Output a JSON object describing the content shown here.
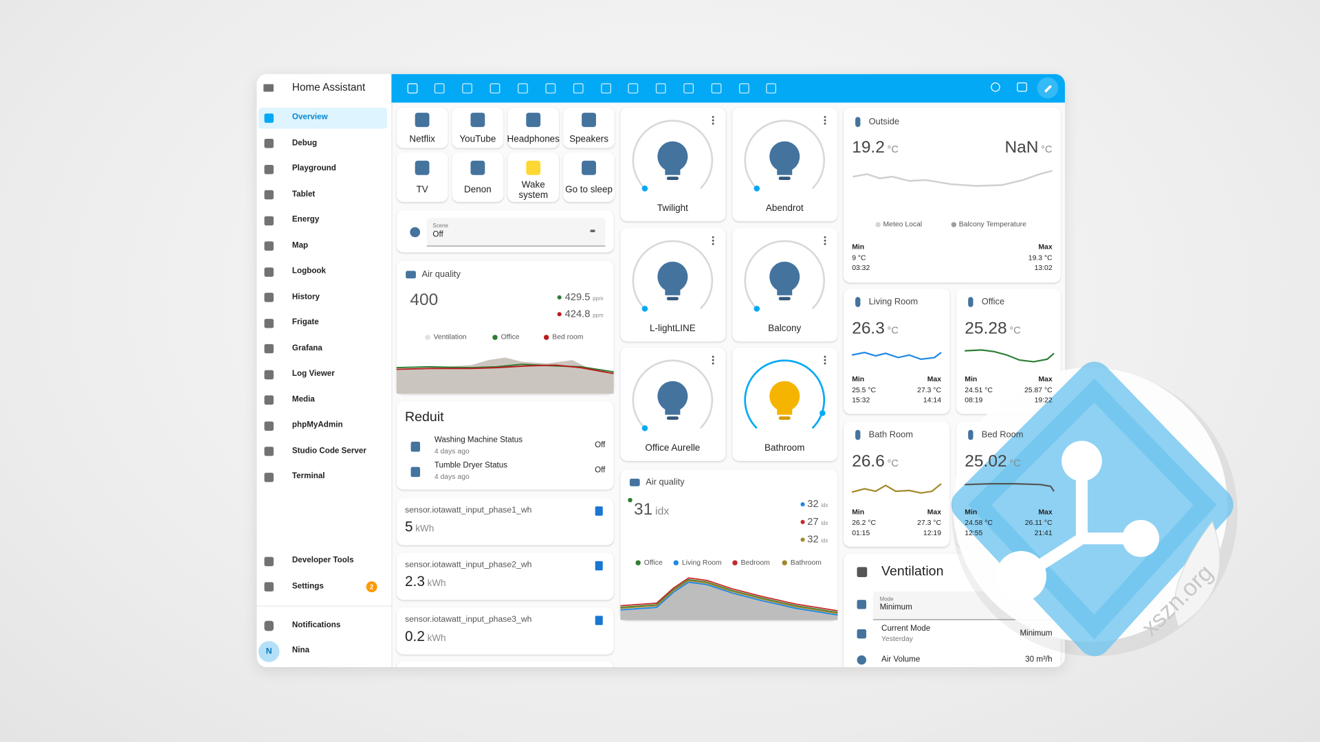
{
  "app": {
    "title": "Home Assistant"
  },
  "sidebar": {
    "items": [
      "Overview",
      "Debug",
      "Playground",
      "Tablet",
      "Energy",
      "Map",
      "Logbook",
      "History",
      "Frigate",
      "Grafana",
      "Log Viewer",
      "Media",
      "phpMyAdmin",
      "Studio Code Server",
      "Terminal"
    ],
    "bottom": [
      "Developer Tools",
      "Settings"
    ],
    "settings_badge": "2",
    "notifications": "Notifications",
    "user": {
      "initial": "N",
      "name": "Nina"
    }
  },
  "buttons": [
    "Netflix",
    "YouTube",
    "Headphones",
    "Speakers",
    "TV",
    "Denon",
    "Wake system",
    "Go to sleep"
  ],
  "scene": {
    "label": "Scene",
    "value": "Off"
  },
  "air_quality_1": {
    "title": "Air quality",
    "value": "400",
    "readings": [
      {
        "value": "429.5",
        "unit": "ppm"
      },
      {
        "value": "424.8",
        "unit": "ppm"
      }
    ],
    "legend": [
      "Ventilation",
      "Office",
      "Bed room"
    ]
  },
  "reduit": {
    "title": "Reduit",
    "rows": [
      {
        "name": "Washing Machine Status",
        "time": "4 days ago",
        "state": "Off"
      },
      {
        "name": "Tumble Dryer Status",
        "time": "4 days ago",
        "state": "Off"
      }
    ]
  },
  "energy": [
    {
      "entity": "sensor.iotawatt_input_phase1_wh",
      "value": "5",
      "unit": "kWh"
    },
    {
      "entity": "sensor.iotawatt_input_phase2_wh",
      "value": "2.3",
      "unit": "kWh"
    },
    {
      "entity": "sensor.iotawatt_input_phase3_wh",
      "value": "0.2",
      "unit": "kWh"
    }
  ],
  "lights": [
    "Twilight",
    "Abendrot",
    "L-lightLINE",
    "Balcony",
    "Office Aurelle",
    "Bathroom"
  ],
  "air_quality_2": {
    "title": "Air quality",
    "value": "31",
    "unit": "idx",
    "readings": [
      {
        "value": "32",
        "unit": "idx"
      },
      {
        "value": "27",
        "unit": "idx"
      },
      {
        "value": "32",
        "unit": "idx"
      }
    ],
    "legend": [
      "Office",
      "Living Room",
      "Bedroom",
      "Bathroom"
    ]
  },
  "outside": {
    "title": "Outside",
    "values": [
      {
        "value": "19.2",
        "unit": "°C"
      },
      {
        "value": "NaN",
        "unit": "°C"
      }
    ],
    "legend": [
      "Meteo Local",
      "Balcony Temperature"
    ],
    "min": {
      "label": "Min",
      "value": "9 °C",
      "time": "03:32"
    },
    "max": {
      "label": "Max",
      "value": "19.3 °C",
      "time": "13:02"
    }
  },
  "rooms": [
    {
      "name": "Living Room",
      "value": "26.3",
      "unit": "°C",
      "min": {
        "label": "Min",
        "value": "25.5 °C",
        "time": "15:32"
      },
      "max": {
        "label": "Max",
        "value": "27.3 °C",
        "time": "14:14"
      }
    },
    {
      "name": "Office",
      "value": "25.28",
      "unit": "°C",
      "min": {
        "label": "Min",
        "value": "24.51 °C",
        "time": "08:19"
      },
      "max": {
        "label": "Max",
        "value": "25.87 °C",
        "time": "19:22"
      }
    },
    {
      "name": "Bath Room",
      "value": "26.6",
      "unit": "°C",
      "min": {
        "label": "Min",
        "value": "26.2 °C",
        "time": "01:15"
      },
      "max": {
        "label": "Max",
        "value": "27.3 °C",
        "time": "12:19"
      }
    },
    {
      "name": "Bed Room",
      "value": "25.02",
      "unit": "°C",
      "min": {
        "label": "Min",
        "value": "24.58 °C",
        "time": "12:55"
      },
      "max": {
        "label": "Max",
        "value": "26.11 °C",
        "time": "21:41"
      }
    }
  ],
  "ventilation": {
    "title": "Ventilation",
    "mode_label": "Mode",
    "mode": "Minimum",
    "rows": [
      {
        "name": "Current Mode",
        "sub": "Yesterday",
        "state": "Minimum"
      },
      {
        "name": "Air Volume",
        "state": "30 m³/h"
      }
    ]
  },
  "watermark": "xszn.org"
}
